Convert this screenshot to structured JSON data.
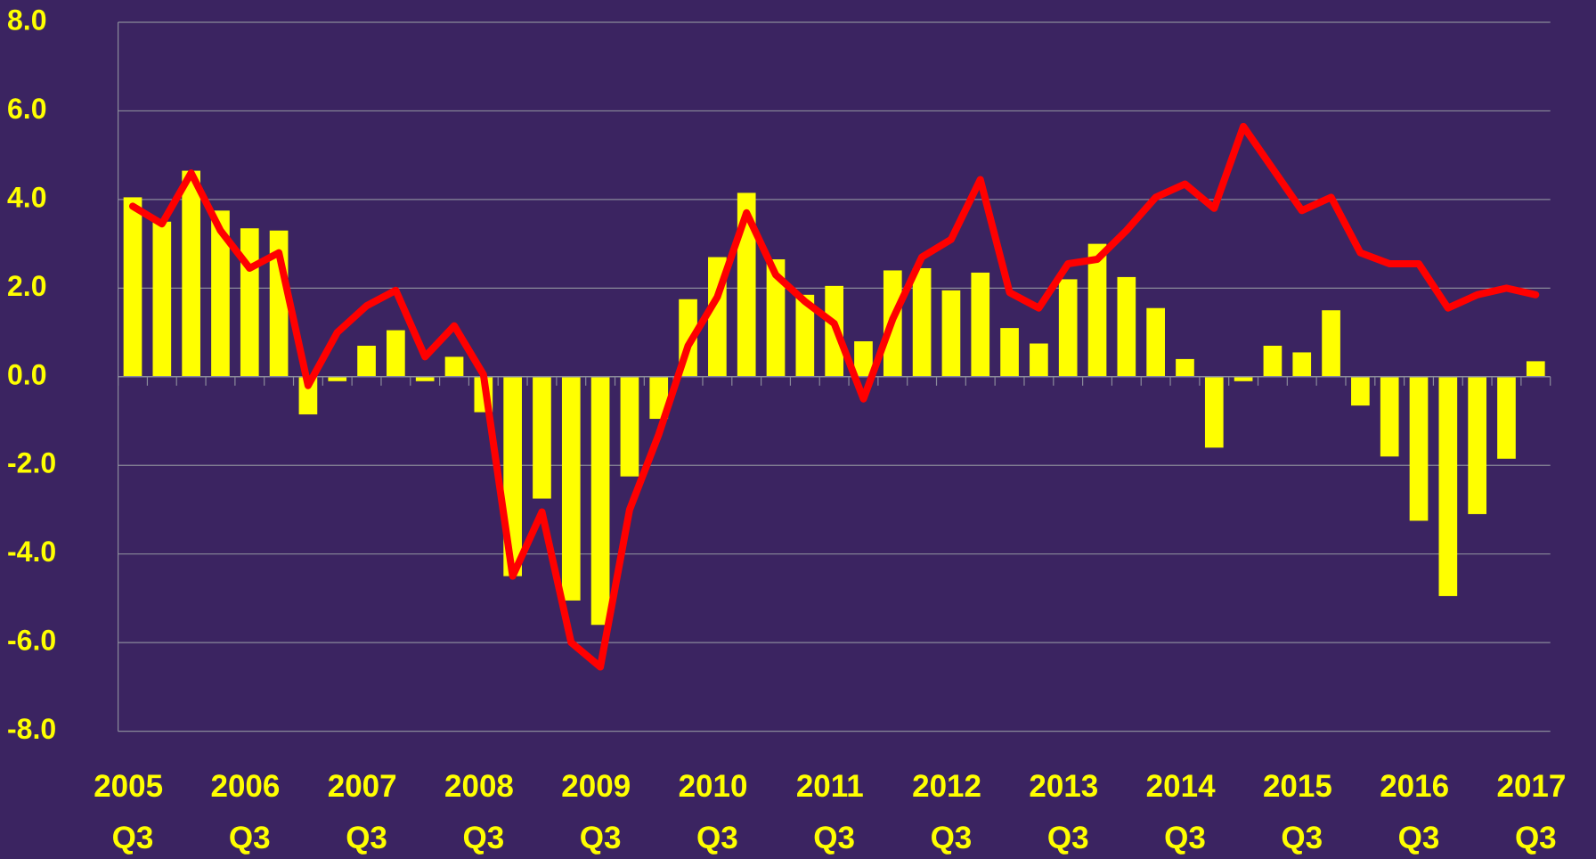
{
  "chart_data": {
    "type": "bar_line",
    "categories": [
      "2005 Q3",
      null,
      null,
      null,
      "2006 Q3",
      null,
      null,
      null,
      "2007 Q3",
      null,
      null,
      null,
      "2008 Q3",
      null,
      null,
      null,
      "2009 Q3",
      null,
      null,
      null,
      "2010 Q3",
      null,
      null,
      null,
      "2011 Q3",
      null,
      null,
      null,
      "2012 Q3",
      null,
      null,
      null,
      "2013 Q3",
      null,
      null,
      null,
      "2014 Q3",
      null,
      null,
      null,
      "2015 Q3",
      null,
      null,
      null,
      "2016 Q3",
      null,
      null,
      null,
      "2017 Q3"
    ],
    "series": [
      {
        "type": "bar",
        "color": "#ffff00",
        "values": [
          4.05,
          3.5,
          4.65,
          3.75,
          3.35,
          3.3,
          -0.85,
          -0.1,
          0.7,
          1.05,
          -0.1,
          0.45,
          -0.8,
          -4.5,
          -2.75,
          -5.05,
          -5.6,
          -2.25,
          -0.95,
          1.75,
          2.7,
          4.15,
          2.65,
          1.85,
          2.05,
          0.8,
          2.4,
          2.45,
          1.95,
          2.35,
          1.1,
          0.75,
          2.2,
          3.0,
          2.25,
          1.55,
          0.4,
          -1.6,
          -0.1,
          0.7,
          0.55,
          1.5,
          -0.65,
          -1.8,
          -3.25,
          -4.95,
          -3.1,
          -1.85,
          0.35
        ]
      },
      {
        "type": "line",
        "color": "#ff0000",
        "values": [
          3.85,
          3.45,
          4.6,
          3.3,
          2.45,
          2.8,
          -0.2,
          1.0,
          1.6,
          1.95,
          0.45,
          1.15,
          0.05,
          -4.5,
          -3.05,
          -6.0,
          -6.55,
          -3.0,
          -1.3,
          0.7,
          1.8,
          3.7,
          2.3,
          1.7,
          1.2,
          -0.5,
          1.3,
          2.7,
          3.1,
          4.45,
          1.9,
          1.55,
          2.55,
          2.65,
          3.3,
          4.05,
          4.35,
          3.8,
          5.65,
          4.7,
          3.75,
          4.05,
          2.8,
          2.55,
          2.55,
          1.55,
          1.85,
          2.0,
          1.85
        ]
      }
    ],
    "ylim": [
      -8,
      8
    ],
    "yticks": [
      {
        "value": -8,
        "label": "-8.0"
      },
      {
        "value": -6,
        "label": "-6.0"
      },
      {
        "value": -4,
        "label": "-4.0"
      },
      {
        "value": -2,
        "label": "-2.0"
      },
      {
        "value": 0,
        "label": "0.0"
      },
      {
        "value": 2,
        "label": "2.0"
      },
      {
        "value": 4,
        "label": "4.0"
      },
      {
        "value": 6,
        "label": "6.0"
      },
      {
        "value": 8,
        "label": "8.0"
      }
    ],
    "grid": true
  }
}
